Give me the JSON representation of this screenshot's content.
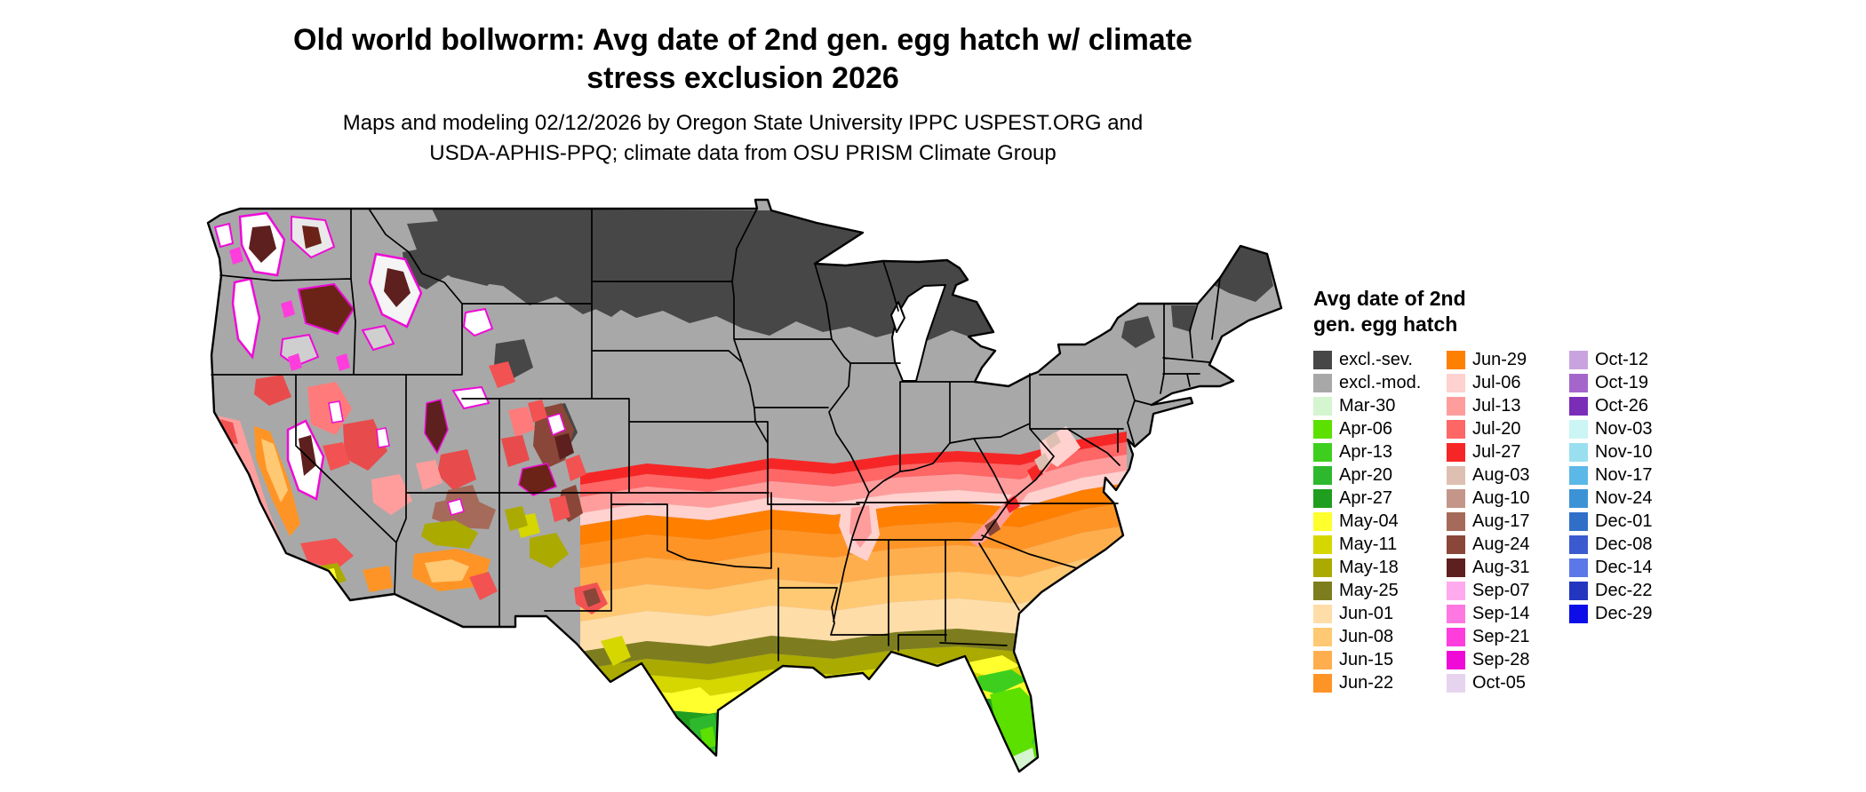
{
  "title": {
    "line1": "Old world bollworm: Avg date of 2nd gen. egg hatch w/ climate",
    "line2": "stress exclusion 2026"
  },
  "subtitle": {
    "line1": "Maps and modeling 02/12/2026 by Oregon State University IPPC USPEST.ORG and",
    "line2": "USDA-APHIS-PPQ; climate data from OSU PRISM Climate Group"
  },
  "legend": {
    "title_line1": "Avg date of 2nd",
    "title_line2": "gen. egg hatch",
    "columns": [
      [
        {
          "label": "excl.-sev.",
          "color": "#474747"
        },
        {
          "label": "excl.-mod.",
          "color": "#a8a8a8"
        },
        {
          "label": "Mar-30",
          "color": "#d4f5cf"
        },
        {
          "label": "Apr-06",
          "color": "#5ce000"
        },
        {
          "label": "Apr-13",
          "color": "#3ecf1e"
        },
        {
          "label": "Apr-20",
          "color": "#2eb82e"
        },
        {
          "label": "Apr-27",
          "color": "#1f9e1f"
        },
        {
          "label": "May-04",
          "color": "#ffff2e"
        },
        {
          "label": "May-11",
          "color": "#d6d600"
        },
        {
          "label": "May-18",
          "color": "#aaaa00"
        },
        {
          "label": "May-25",
          "color": "#7d7d1f"
        },
        {
          "label": "Jun-01",
          "color": "#ffdda8"
        },
        {
          "label": "Jun-08",
          "color": "#ffc873"
        },
        {
          "label": "Jun-15",
          "color": "#ffae4d"
        },
        {
          "label": "Jun-22",
          "color": "#ff9426"
        }
      ],
      [
        {
          "label": "Jun-29",
          "color": "#ff7f00"
        },
        {
          "label": "Jul-06",
          "color": "#ffd1cf"
        },
        {
          "label": "Jul-13",
          "color": "#ff9d9d"
        },
        {
          "label": "Jul-20",
          "color": "#ff6666"
        },
        {
          "label": "Jul-27",
          "color": "#f72626"
        },
        {
          "label": "Aug-03",
          "color": "#ddc0b2"
        },
        {
          "label": "Aug-10",
          "color": "#c49689"
        },
        {
          "label": "Aug-17",
          "color": "#a66a5a"
        },
        {
          "label": "Aug-24",
          "color": "#8a4638"
        },
        {
          "label": "Aug-31",
          "color": "#5e1f1f"
        },
        {
          "label": "Sep-07",
          "color": "#ffaaee"
        },
        {
          "label": "Sep-14",
          "color": "#ff77e0"
        },
        {
          "label": "Sep-21",
          "color": "#ff3ddd"
        },
        {
          "label": "Sep-28",
          "color": "#ef0ad8"
        },
        {
          "label": "Oct-05",
          "color": "#e6d4ee"
        }
      ],
      [
        {
          "label": "Oct-12",
          "color": "#c9a3e0"
        },
        {
          "label": "Oct-19",
          "color": "#a566cc"
        },
        {
          "label": "Oct-26",
          "color": "#7a2eb8"
        },
        {
          "label": "Nov-03",
          "color": "#ccf5f5"
        },
        {
          "label": "Nov-10",
          "color": "#99dff0"
        },
        {
          "label": "Nov-17",
          "color": "#5cb8e8"
        },
        {
          "label": "Nov-24",
          "color": "#3b93d6"
        },
        {
          "label": "Dec-01",
          "color": "#2f6fc8"
        },
        {
          "label": "Dec-08",
          "color": "#3b5ad0"
        },
        {
          "label": "Dec-14",
          "color": "#5a78e8"
        },
        {
          "label": "Dec-22",
          "color": "#2236c0"
        },
        {
          "label": "Dec-29",
          "color": "#0d0de8"
        }
      ]
    ]
  }
}
